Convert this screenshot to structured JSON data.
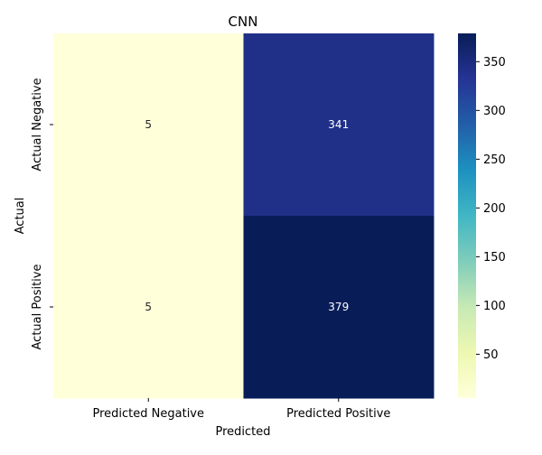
{
  "chart_data": {
    "type": "heatmap",
    "title": "CNN",
    "xlabel": "Predicted",
    "ylabel": "Actual",
    "x_categories": [
      "Predicted Negative",
      "Predicted Positive"
    ],
    "y_categories": [
      "Actual Negative",
      "Actual Positive"
    ],
    "values": [
      [
        5,
        341
      ],
      [
        5,
        379
      ]
    ],
    "colormap": "YlGnBu",
    "colorbar": {
      "range": [
        5,
        379
      ],
      "ticks": [
        50,
        100,
        150,
        200,
        250,
        300,
        350
      ]
    }
  }
}
